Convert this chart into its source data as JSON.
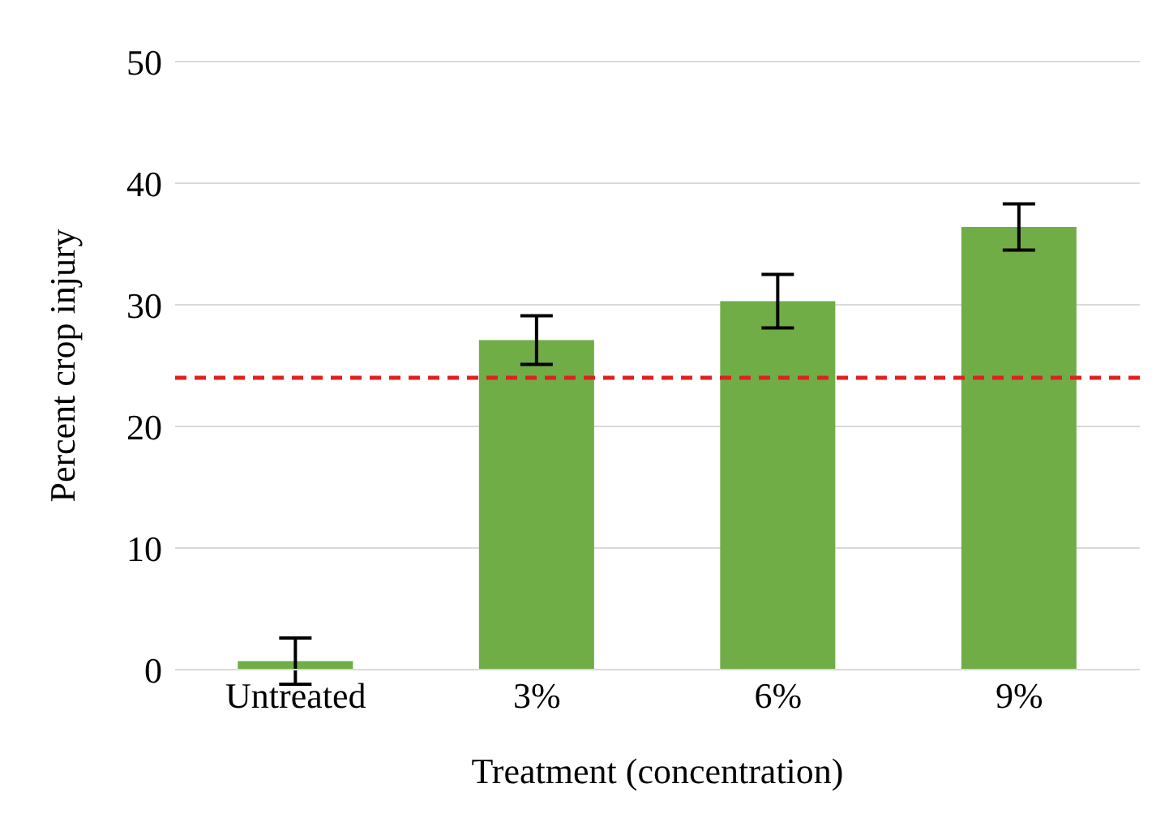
{
  "chart_data": {
    "type": "bar",
    "xlabel": "Treatment (concentration)",
    "ylabel": "Percent crop injury",
    "categories": [
      "Untreated",
      "3%",
      "6%",
      "9%"
    ],
    "values": [
      0.7,
      27.1,
      30.3,
      36.4
    ],
    "errors": [
      1.9,
      2,
      2.2,
      1.9
    ],
    "color": "#70ad47",
    "ylim": [
      0,
      50
    ],
    "yticks": [
      0,
      10,
      20,
      30,
      40,
      50
    ],
    "grid": "y",
    "ref_lines": [
      {
        "axis": "y",
        "value": 24,
        "color": "#e02020",
        "line_style": "dashed"
      }
    ]
  }
}
